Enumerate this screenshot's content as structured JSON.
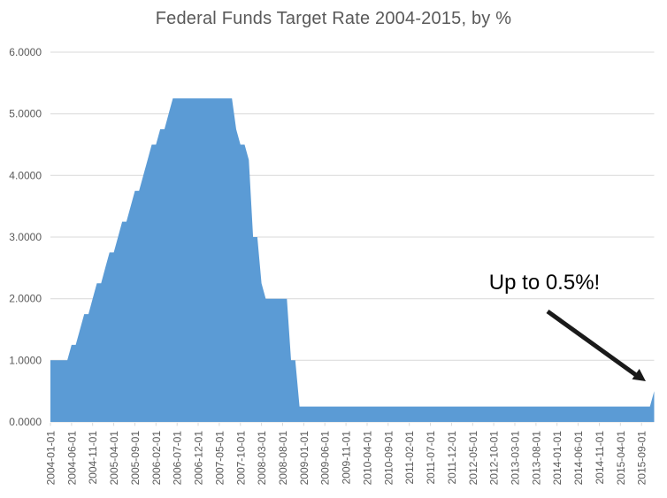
{
  "header": {
    "title": "Federal Funds Target Rate 2004-2015, by %"
  },
  "annotation": {
    "text": "Up to 0.5%!"
  },
  "colors": {
    "area_fill": "#5B9BD5",
    "gridline": "#D9D9D9",
    "axis_text": "#595959",
    "title_text": "#595959",
    "annotation_text": "#000000",
    "arrow": "#1a1a1a"
  },
  "chart_data": {
    "type": "area",
    "title": "Federal Funds Target Rate 2004-2015, by %",
    "xlabel": "",
    "ylabel": "",
    "ylim": [
      0,
      6
    ],
    "grid": "horizontal",
    "legend": "none",
    "x_frequency": "monthly",
    "x_range": [
      "2004-01-01",
      "2015-12-01"
    ],
    "x_tick_labels": [
      "2004-01-01",
      "2004-06-01",
      "2004-11-01",
      "2005-04-01",
      "2005-09-01",
      "2006-02-01",
      "2006-07-01",
      "2006-12-01",
      "2007-05-01",
      "2007-10-01",
      "2008-03-01",
      "2008-08-01",
      "2009-01-01",
      "2009-06-01",
      "2009-11-01",
      "2010-04-01",
      "2010-09-01",
      "2011-02-01",
      "2011-07-01",
      "2011-12-01",
      "2012-05-01",
      "2012-10-01",
      "2013-03-01",
      "2013-08-01",
      "2014-01-01",
      "2014-06-01",
      "2014-11-01",
      "2015-04-01",
      "2015-09-01"
    ],
    "y_tick_labels": [
      "0.0000",
      "1.0000",
      "2.0000",
      "3.0000",
      "4.0000",
      "5.0000",
      "6.0000"
    ],
    "series": [
      {
        "name": "Federal Funds Target Rate (%)",
        "values": [
          1.0,
          1.0,
          1.0,
          1.0,
          1.0,
          1.25,
          1.25,
          1.5,
          1.75,
          1.75,
          2.0,
          2.25,
          2.25,
          2.5,
          2.75,
          2.75,
          3.0,
          3.25,
          3.25,
          3.5,
          3.75,
          3.75,
          4.0,
          4.25,
          4.5,
          4.5,
          4.75,
          4.75,
          5.0,
          5.25,
          5.25,
          5.25,
          5.25,
          5.25,
          5.25,
          5.25,
          5.25,
          5.25,
          5.25,
          5.25,
          5.25,
          5.25,
          5.25,
          5.25,
          4.75,
          4.5,
          4.5,
          4.25,
          3.0,
          3.0,
          2.25,
          2.0,
          2.0,
          2.0,
          2.0,
          2.0,
          2.0,
          1.0,
          1.0,
          0.25,
          0.25,
          0.25,
          0.25,
          0.25,
          0.25,
          0.25,
          0.25,
          0.25,
          0.25,
          0.25,
          0.25,
          0.25,
          0.25,
          0.25,
          0.25,
          0.25,
          0.25,
          0.25,
          0.25,
          0.25,
          0.25,
          0.25,
          0.25,
          0.25,
          0.25,
          0.25,
          0.25,
          0.25,
          0.25,
          0.25,
          0.25,
          0.25,
          0.25,
          0.25,
          0.25,
          0.25,
          0.25,
          0.25,
          0.25,
          0.25,
          0.25,
          0.25,
          0.25,
          0.25,
          0.25,
          0.25,
          0.25,
          0.25,
          0.25,
          0.25,
          0.25,
          0.25,
          0.25,
          0.25,
          0.25,
          0.25,
          0.25,
          0.25,
          0.25,
          0.25,
          0.25,
          0.25,
          0.25,
          0.25,
          0.25,
          0.25,
          0.25,
          0.25,
          0.25,
          0.25,
          0.25,
          0.25,
          0.25,
          0.25,
          0.25,
          0.25,
          0.25,
          0.25,
          0.25,
          0.25,
          0.25,
          0.25,
          0.25,
          0.5
        ]
      }
    ],
    "annotations": [
      {
        "text": "Up to 0.5%!",
        "arrow_to": {
          "x": "2015-12-01",
          "y": 0.5
        }
      }
    ]
  }
}
